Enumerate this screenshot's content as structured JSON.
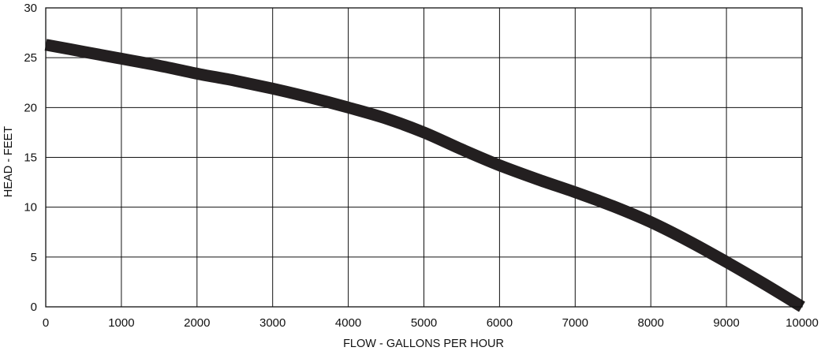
{
  "chart_data": {
    "type": "line",
    "title": "",
    "xlabel": "FLOW - GALLONS PER HOUR",
    "ylabel": "HEAD - FEET",
    "xlim": [
      0,
      10000
    ],
    "ylim": [
      0,
      30
    ],
    "x_ticks": [
      0,
      1000,
      2000,
      3000,
      4000,
      5000,
      6000,
      7000,
      8000,
      9000,
      10000
    ],
    "y_ticks": [
      0,
      5,
      10,
      15,
      20,
      25,
      30
    ],
    "grid": true,
    "legend": "none",
    "series": [
      {
        "color": "#231f20",
        "x": [
          0,
          500,
          1000,
          1500,
          2000,
          2500,
          3000,
          3500,
          4000,
          4500,
          5000,
          5500,
          6000,
          6500,
          7000,
          7500,
          8000,
          8500,
          9000,
          9500,
          10000
        ],
        "y": [
          26.3,
          25.6,
          24.9,
          24.2,
          23.4,
          22.7,
          21.9,
          21.0,
          20.0,
          18.9,
          17.5,
          15.8,
          14.2,
          12.8,
          11.5,
          10.1,
          8.5,
          6.6,
          4.5,
          2.3,
          0.0
        ]
      }
    ]
  }
}
